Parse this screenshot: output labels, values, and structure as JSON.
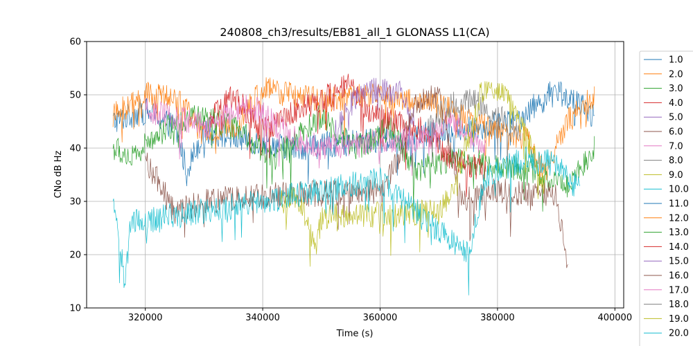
{
  "chart_data": {
    "type": "line",
    "title": "240808_ch3/results/EB81_all_1 GLONASS L1(CA)",
    "xlabel": "Time (s)",
    "ylabel": "CNo dB Hz",
    "xlim": [
      310000,
      401500
    ],
    "ylim": [
      10,
      60
    ],
    "x_ticks": [
      320000,
      340000,
      360000,
      380000,
      400000
    ],
    "x_tick_labels": [
      "320000",
      "340000",
      "360000",
      "380000",
      "400000"
    ],
    "y_ticks": [
      10,
      20,
      30,
      40,
      50,
      60
    ],
    "y_tick_labels": [
      "10",
      "20",
      "30",
      "40",
      "50",
      "60"
    ],
    "grid": true,
    "legend_position": "right (outside, clipped at bottom)",
    "series": [
      {
        "name": "1.0",
        "color": "#1f77b4",
        "anchors": [
          [
            314500,
            45
          ],
          [
            320000,
            47
          ],
          [
            325000,
            44
          ],
          [
            327000,
            36
          ],
          [
            330000,
            43
          ],
          [
            345000,
            40
          ],
          [
            365000,
            42
          ],
          [
            383000,
            45
          ],
          [
            390000,
            51
          ],
          [
            396500,
            46
          ]
        ]
      },
      {
        "name": "2.0",
        "color": "#ff7f0e",
        "anchors": [
          [
            314500,
            46
          ],
          [
            320000,
            50
          ],
          [
            326000,
            49
          ],
          [
            330000,
            42
          ],
          [
            335000,
            44
          ],
          [
            340000,
            51
          ],
          [
            350000,
            49
          ],
          [
            360000,
            50
          ],
          [
            370000,
            48
          ],
          [
            378000,
            44
          ],
          [
            385000,
            42
          ],
          [
            388000,
            35
          ],
          [
            392000,
            45
          ],
          [
            396500,
            50
          ]
        ]
      },
      {
        "name": "3.0",
        "color": "#2ca02c",
        "anchors": [
          [
            314500,
            40
          ],
          [
            318000,
            38
          ],
          [
            322000,
            43
          ],
          [
            328000,
            46
          ],
          [
            335000,
            44
          ],
          [
            342000,
            38
          ],
          [
            350000,
            46
          ],
          [
            356000,
            40
          ],
          [
            362000,
            44
          ],
          [
            366000,
            36
          ],
          [
            372000,
            38
          ],
          [
            385000,
            36
          ],
          [
            392000,
            33
          ],
          [
            396500,
            40
          ]
        ]
      },
      {
        "name": "4.0",
        "color": "#d62728",
        "anchors": [
          [
            331000,
            45
          ],
          [
            335000,
            50
          ],
          [
            340000,
            43
          ],
          [
            345000,
            47
          ],
          [
            350000,
            49
          ],
          [
            355000,
            52
          ],
          [
            358000,
            47
          ],
          [
            362000,
            45
          ],
          [
            368000,
            43
          ],
          [
            372000,
            38
          ],
          [
            378000,
            36
          ]
        ]
      },
      {
        "name": "5.0",
        "color": "#9467bd",
        "anchors": [
          [
            352000,
            42
          ],
          [
            356000,
            50
          ],
          [
            360000,
            51
          ],
          [
            364000,
            50
          ],
          [
            366000,
            45
          ]
        ]
      },
      {
        "name": "6.0",
        "color": "#8c564b",
        "anchors": [
          [
            320000,
            38
          ],
          [
            322000,
            34
          ],
          [
            325000,
            28
          ],
          [
            330000,
            30
          ],
          [
            340000,
            31
          ],
          [
            360000,
            32
          ],
          [
            363000,
            38
          ],
          [
            366000,
            48
          ],
          [
            370000,
            50
          ],
          [
            374000,
            30
          ],
          [
            380000,
            32
          ],
          [
            390000,
            31
          ],
          [
            392000,
            18
          ]
        ]
      },
      {
        "name": "7.0",
        "color": "#e377c2",
        "anchors": [
          [
            320000,
            47
          ],
          [
            325000,
            46
          ],
          [
            330000,
            44
          ],
          [
            338000,
            48
          ],
          [
            345000,
            42
          ],
          [
            350000,
            40
          ],
          [
            368000,
            42
          ],
          [
            372000,
            45
          ],
          [
            378000,
            40
          ]
        ]
      },
      {
        "name": "8.0",
        "color": "#7f7f7f",
        "anchors": [
          [
            368000,
            44
          ],
          [
            372000,
            48
          ],
          [
            376000,
            49
          ],
          [
            380000,
            46
          ],
          [
            384000,
            43
          ]
        ]
      },
      {
        "name": "9.0",
        "color": "#bcbd22",
        "anchors": [
          [
            343000,
            30
          ],
          [
            346000,
            31
          ],
          [
            349000,
            21
          ],
          [
            350000,
            27
          ],
          [
            370000,
            28
          ],
          [
            373000,
            34
          ],
          [
            377000,
            50
          ],
          [
            381000,
            51
          ],
          [
            384000,
            45
          ],
          [
            388000,
            33
          ]
        ]
      },
      {
        "name": "10.0",
        "color": "#17becf",
        "anchors": [
          [
            314500,
            32
          ],
          [
            316500,
            15
          ],
          [
            317500,
            26
          ],
          [
            340000,
            30
          ],
          [
            360000,
            34
          ],
          [
            375000,
            20
          ],
          [
            378000,
            35
          ],
          [
            385000,
            38
          ],
          [
            390000,
            37
          ],
          [
            394000,
            32
          ]
        ]
      }
    ],
    "legend_entries": [
      "1.0",
      "2.0",
      "3.0",
      "4.0",
      "5.0",
      "6.0",
      "7.0",
      "8.0",
      "9.0",
      "10.0",
      "11.0",
      "12.0",
      "13.0",
      "14.0",
      "15.0",
      "16.0",
      "17.0",
      "18.0",
      "19.0",
      "20.0"
    ]
  }
}
